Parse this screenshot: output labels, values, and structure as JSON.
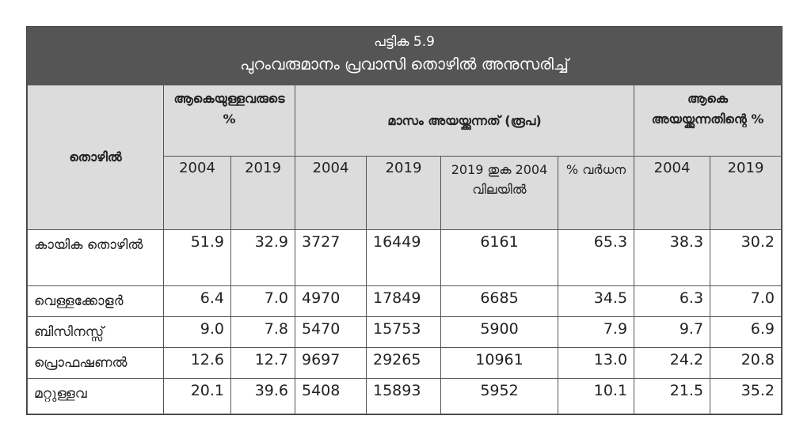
{
  "title": {
    "number": "പട്ടിക 5.9",
    "text": "പുറംവരുമാനം പ്രവാസി തൊഴിൽ അനുസരിച്ച്"
  },
  "headers": {
    "occupation": "തൊഴിൽ",
    "group1": "ആകെയുള്ളവരുടെ %",
    "group2": "മാസം അയയ്ക്കുന്നത് (രൂപ)",
    "group3": "ആകെ അയയ്ക്കുന്നതിന്റെ %",
    "years": [
      "2004",
      "2019",
      "2004",
      "2019",
      "2019 തുക 2004 വിലയിൽ",
      "% വർധന",
      "2004",
      "2019"
    ]
  },
  "rows": [
    {
      "label": "കായിക തൊഴിൽ",
      "values": [
        "51.9",
        "32.9",
        "3727",
        "16449",
        "6161",
        "65.3",
        "38.3",
        "30.2"
      ]
    },
    {
      "label": "വെള്ളക്കോളർ",
      "values": [
        "6.4",
        "7.0",
        "4970",
        "17849",
        "6685",
        "34.5",
        "6.3",
        "7.0"
      ]
    },
    {
      "label": "ബിസിനസ്സ്",
      "values": [
        "9.0",
        "7.8",
        "5470",
        "15753",
        "5900",
        "7.9",
        "9.7",
        "6.9"
      ]
    },
    {
      "label": "പ്രൊഫഷണൽ",
      "values": [
        "12.6",
        "12.7",
        "9697",
        "29265",
        "10961",
        "13.0",
        "24.2",
        "20.8"
      ]
    },
    {
      "label": "മറ്റുള്ളവ",
      "values": [
        "20.1",
        "39.6",
        "5408",
        "15893",
        "5952",
        "10.1",
        "21.5",
        "35.2"
      ]
    }
  ]
}
